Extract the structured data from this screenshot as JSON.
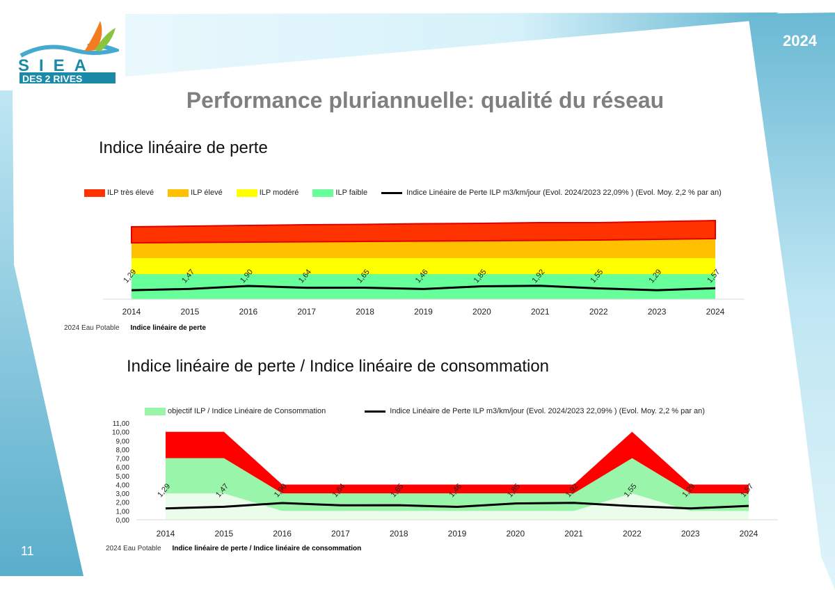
{
  "header": {
    "year": "2024",
    "title": "Performance pluriannuelle: qualité du réseau",
    "page_number": "11"
  },
  "logo": {
    "line1": "SIEA",
    "line2": "DES 2 RIVES"
  },
  "chart_data": [
    {
      "type": "area",
      "heading": "Indice linéaire de perte",
      "categories": [
        "2014",
        "2015",
        "2016",
        "2017",
        "2018",
        "2019",
        "2020",
        "2021",
        "2022",
        "2023",
        "2024"
      ],
      "series": [
        {
          "name": "ILP faible",
          "color": "#66ff99",
          "values": [
            3.6,
            3.6,
            3.6,
            3.6,
            3.6,
            3.6,
            3.6,
            3.6,
            3.6,
            3.6,
            3.6
          ]
        },
        {
          "name": "ILP modéré",
          "color": "#ffff00",
          "values": [
            2.3,
            2.3,
            2.3,
            2.3,
            2.3,
            2.3,
            2.3,
            2.3,
            2.3,
            2.3,
            2.3
          ]
        },
        {
          "name": "ILP élevé",
          "color": "#ffc000",
          "values": [
            2.2,
            2.25,
            2.3,
            2.35,
            2.4,
            2.45,
            2.5,
            2.55,
            2.6,
            2.7,
            2.8
          ]
        },
        {
          "name": "ILP très élevé",
          "color": "#ff3300",
          "values": [
            2.3,
            2.35,
            2.4,
            2.45,
            2.45,
            2.5,
            2.5,
            2.55,
            2.5,
            2.55,
            2.6
          ]
        }
      ],
      "line": {
        "name": "Indice Linéaire de Perte ILP m3/km/jour (Evol. 2024/2023 22,09% ) (Evol. Moy. 2,2 % par an)",
        "values": [
          1.29,
          1.47,
          1.9,
          1.64,
          1.65,
          1.46,
          1.85,
          1.92,
          1.55,
          1.29,
          1.57
        ],
        "labels": [
          "1,29",
          "1,47",
          "1,90",
          "1,64",
          "1,65",
          "1,46",
          "1,85",
          "1,92",
          "1,55",
          "1,29",
          "1,57"
        ]
      },
      "footer": {
        "left": "2024 Eau Potable",
        "right": "Indice linéaire de perte"
      }
    },
    {
      "type": "area",
      "heading": "Indice linéaire de perte / Indice linéaire de consommation",
      "categories": [
        "2014",
        "2015",
        "2016",
        "2017",
        "2018",
        "2019",
        "2020",
        "2021",
        "2022",
        "2023",
        "2024"
      ],
      "ylim": [
        0,
        11
      ],
      "yticks": [
        "0,00",
        "1,00",
        "2,00",
        "3,00",
        "4,00",
        "5,00",
        "6,00",
        "7,00",
        "8,00",
        "9,00",
        "10,00",
        "11,00"
      ],
      "bands": {
        "lower": [
          3,
          3,
          1,
          1,
          1,
          1,
          1,
          1,
          3,
          1,
          1
        ],
        "middle": [
          7,
          7,
          3,
          3,
          3,
          3,
          3,
          3,
          7,
          3,
          3
        ],
        "upper": [
          10,
          10,
          4,
          4,
          4,
          4,
          4,
          4,
          10,
          4,
          4
        ]
      },
      "band_colors": {
        "low": "#eafcea",
        "objective": "#99f5aa",
        "high": "#ff0000"
      },
      "legend_objective": "objectif ILP / Indice Linéaire de Consommation",
      "line": {
        "name": "Indice Linéaire de Perte ILP m3/km/jour (Evol. 2024/2023 22,09% ) (Evol. Moy. 2,2 % par an)",
        "values": [
          1.29,
          1.47,
          1.9,
          1.64,
          1.65,
          1.46,
          1.85,
          1.92,
          1.55,
          1.29,
          1.57
        ],
        "labels": [
          "1,29",
          "1,47",
          "1,90",
          "1,64",
          "1,65",
          "1,46",
          "1,85",
          "1,92",
          "1,55",
          "1,29",
          "1,57"
        ]
      },
      "footer": {
        "left": "2024 Eau Potable",
        "right": "Indice linéaire de perte / Indice linéaire de consommation"
      }
    }
  ]
}
